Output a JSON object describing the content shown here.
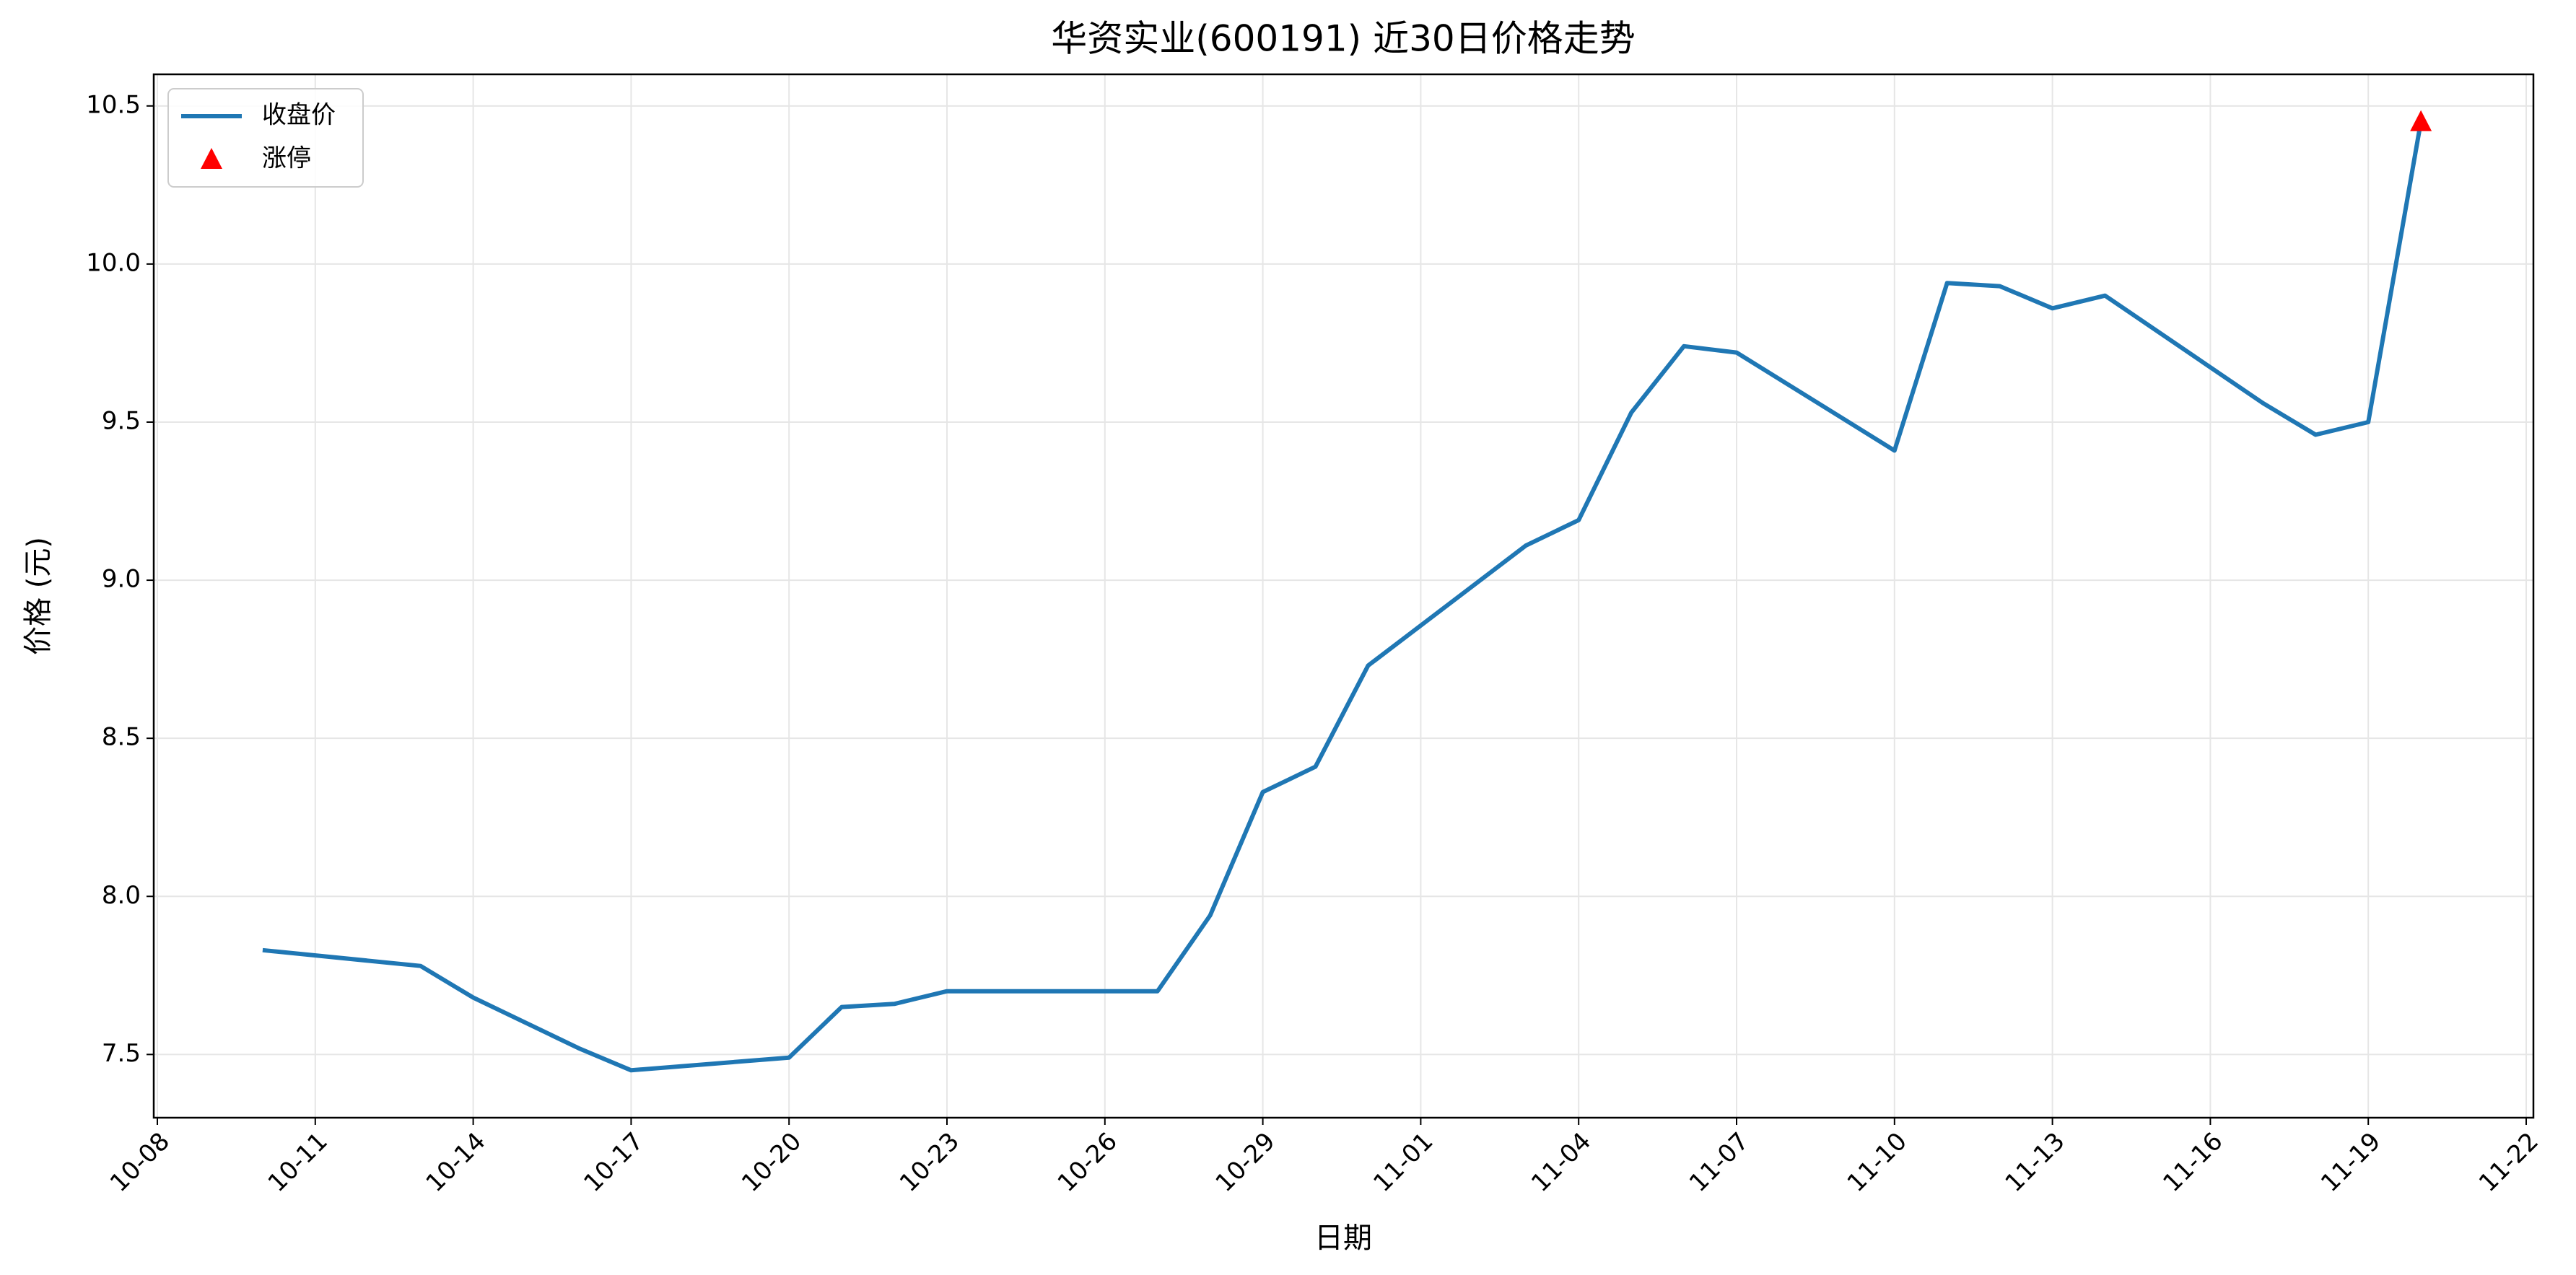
{
  "chart_data": {
    "type": "line",
    "title": "华资实业(600191) 近30日价格走势",
    "xlabel": "日期",
    "ylabel": "价格 (元)",
    "x": [
      "10-10",
      "10-13",
      "10-14",
      "10-16",
      "10-17",
      "10-20",
      "10-21",
      "10-22",
      "10-23",
      "10-24",
      "10-27",
      "10-28",
      "10-29",
      "10-30",
      "10-31",
      "11-03",
      "11-04",
      "11-05",
      "11-06",
      "11-07",
      "11-10",
      "11-11",
      "11-12",
      "11-13",
      "11-14",
      "11-17",
      "11-18",
      "11-19",
      "11-20"
    ],
    "series": [
      {
        "name": "收盘价",
        "color": "#1f77b4",
        "values": [
          7.83,
          7.78,
          7.68,
          7.52,
          7.45,
          7.49,
          7.65,
          7.66,
          7.7,
          7.7,
          7.7,
          7.94,
          8.33,
          8.41,
          8.73,
          9.11,
          9.19,
          9.53,
          9.74,
          9.72,
          9.41,
          9.94,
          9.93,
          9.86,
          9.9,
          9.56,
          9.46,
          9.5,
          10.45
        ]
      },
      {
        "name": "涨停",
        "type": "scatter",
        "marker": "triangle",
        "color": "#ff0000",
        "values": [
          null,
          null,
          null,
          null,
          null,
          null,
          null,
          null,
          null,
          null,
          null,
          null,
          null,
          null,
          null,
          null,
          null,
          null,
          null,
          null,
          null,
          null,
          null,
          null,
          null,
          null,
          null,
          null,
          10.45
        ]
      }
    ],
    "xlim": [
      "10-08",
      "11-22"
    ],
    "xticks": [
      "10-08",
      "10-11",
      "10-14",
      "10-17",
      "10-20",
      "10-23",
      "10-26",
      "10-29",
      "11-01",
      "11-04",
      "11-07",
      "11-10",
      "11-13",
      "11-16",
      "11-19",
      "11-22"
    ],
    "ylim": [
      7.3,
      10.6
    ],
    "yticks": [
      7.5,
      {
        "value": 8,
        "label": "8.0"
      },
      8.5,
      {
        "value": 9,
        "label": "9.0"
      },
      9.5,
      {
        "value": 10,
        "label": "10.0"
      },
      10.5
    ],
    "grid": true,
    "legend": "upper left"
  }
}
